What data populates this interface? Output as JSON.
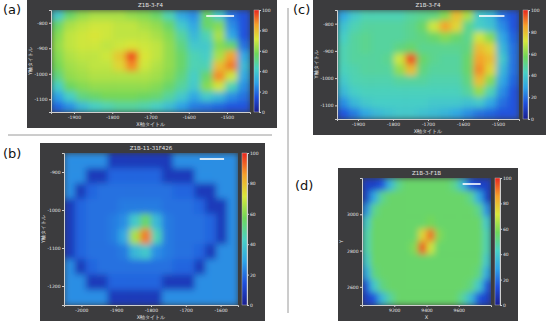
{
  "chart_data": [
    {
      "type": "heatmap",
      "annotation": "(a)",
      "title": "Z1B-3-F4",
      "x_label": "X軸タイトル",
      "y_label": "Y軸タイトル",
      "xlim": [
        -1960,
        -1440
      ],
      "xticks": [
        -1900,
        -1800,
        -1700,
        -1600,
        -1500
      ],
      "ylim": [
        -1150,
        -750
      ],
      "yticks": [
        -1100,
        -1000,
        -900,
        -800
      ],
      "color_range": [
        0,
        100
      ],
      "color_ticks": [
        0,
        20,
        40,
        60,
        80,
        100
      ],
      "cells": [
        [
          40,
          55,
          62,
          65,
          65,
          65,
          62,
          60,
          55,
          45,
          30,
          25,
          55,
          40,
          20,
          15
        ],
        [
          55,
          65,
          68,
          70,
          70,
          68,
          68,
          65,
          62,
          55,
          40,
          30,
          55,
          60,
          25,
          15
        ],
        [
          60,
          68,
          70,
          72,
          70,
          68,
          68,
          68,
          65,
          60,
          48,
          35,
          45,
          65,
          30,
          15
        ],
        [
          62,
          68,
          70,
          70,
          68,
          70,
          72,
          70,
          68,
          62,
          52,
          40,
          40,
          60,
          55,
          20
        ],
        [
          60,
          66,
          68,
          68,
          70,
          78,
          95,
          72,
          68,
          62,
          55,
          45,
          42,
          65,
          85,
          30
        ],
        [
          58,
          64,
          66,
          68,
          68,
          75,
          88,
          70,
          66,
          62,
          55,
          45,
          45,
          80,
          90,
          35
        ],
        [
          52,
          62,
          64,
          66,
          66,
          66,
          66,
          66,
          64,
          60,
          52,
          42,
          55,
          88,
          70,
          30
        ],
        [
          42,
          56,
          60,
          62,
          62,
          62,
          62,
          62,
          60,
          55,
          48,
          40,
          60,
          70,
          45,
          25
        ],
        [
          28,
          42,
          52,
          55,
          58,
          58,
          58,
          56,
          54,
          48,
          40,
          30,
          40,
          35,
          25,
          20
        ],
        [
          18,
          25,
          35,
          42,
          45,
          48,
          48,
          46,
          42,
          36,
          28,
          22,
          20,
          18,
          15,
          15
        ]
      ]
    },
    {
      "type": "heatmap",
      "annotation": "(b)",
      "title": "Z1B-11-31F426",
      "x_label": "X軸タイトル",
      "y_label": "Y軸タイトル",
      "xlim": [
        -2050,
        -1550
      ],
      "xticks": [
        -2000,
        -1900,
        -1800,
        -1700,
        -1600
      ],
      "ylim": [
        -1250,
        -850
      ],
      "yticks": [
        -1200,
        -1100,
        -1000,
        -900
      ],
      "color_range": [
        0,
        100
      ],
      "color_ticks": [
        0,
        20,
        40,
        60,
        80,
        100
      ],
      "cells": [
        [
          25,
          25,
          25,
          25,
          8,
          8,
          8,
          8,
          8,
          8,
          25,
          25,
          25,
          25,
          25,
          25
        ],
        [
          25,
          25,
          8,
          8,
          18,
          18,
          18,
          18,
          18,
          8,
          8,
          8,
          25,
          25,
          25,
          25
        ],
        [
          25,
          8,
          18,
          20,
          20,
          20,
          20,
          20,
          20,
          20,
          18,
          18,
          8,
          8,
          25,
          25
        ],
        [
          8,
          18,
          20,
          20,
          20,
          22,
          22,
          22,
          22,
          20,
          20,
          20,
          18,
          8,
          8,
          25
        ],
        [
          8,
          18,
          20,
          20,
          22,
          25,
          40,
          55,
          35,
          22,
          20,
          20,
          20,
          18,
          8,
          25
        ],
        [
          8,
          18,
          20,
          20,
          22,
          30,
          65,
          90,
          45,
          22,
          20,
          20,
          20,
          18,
          8,
          25
        ],
        [
          8,
          18,
          20,
          20,
          20,
          22,
          35,
          40,
          25,
          22,
          20,
          20,
          18,
          8,
          25,
          25
        ],
        [
          25,
          8,
          18,
          20,
          20,
          20,
          20,
          20,
          20,
          20,
          18,
          18,
          8,
          25,
          25,
          25
        ],
        [
          25,
          25,
          8,
          8,
          18,
          18,
          18,
          18,
          18,
          8,
          8,
          8,
          25,
          25,
          25,
          25
        ],
        [
          25,
          25,
          25,
          25,
          8,
          8,
          8,
          8,
          8,
          25,
          25,
          25,
          25,
          25,
          25,
          25
        ]
      ]
    },
    {
      "type": "heatmap",
      "annotation": "(c)",
      "title": "Z1B-3-F4",
      "x_label": "X軸タイトル",
      "y_label": "Y軸タイトル",
      "xlim": [
        -1960,
        -1440
      ],
      "xticks": [
        -1900,
        -1800,
        -1700,
        -1600,
        -1500
      ],
      "ylim": [
        -1150,
        -750
      ],
      "yticks": [
        -1100,
        -1000,
        -900,
        -800
      ],
      "color_range": [
        0,
        100
      ],
      "color_ticks": [
        0,
        20,
        40,
        60,
        80,
        100
      ],
      "cells": [
        [
          30,
          40,
          45,
          45,
          45,
          45,
          48,
          50,
          52,
          60,
          80,
          65,
          40,
          35,
          20,
          15
        ],
        [
          38,
          45,
          48,
          48,
          48,
          48,
          50,
          55,
          70,
          85,
          75,
          50,
          42,
          38,
          25,
          15
        ],
        [
          42,
          48,
          50,
          48,
          48,
          48,
          50,
          52,
          55,
          60,
          55,
          50,
          70,
          60,
          30,
          18
        ],
        [
          45,
          48,
          50,
          48,
          48,
          52,
          55,
          50,
          50,
          50,
          50,
          52,
          80,
          75,
          35,
          20
        ],
        [
          45,
          48,
          48,
          48,
          50,
          70,
          95,
          55,
          50,
          48,
          48,
          55,
          85,
          80,
          40,
          20
        ],
        [
          44,
          46,
          48,
          48,
          48,
          62,
          80,
          52,
          48,
          48,
          48,
          55,
          88,
          75,
          35,
          20
        ],
        [
          40,
          45,
          46,
          46,
          46,
          48,
          48,
          48,
          46,
          46,
          46,
          52,
          80,
          60,
          30,
          18
        ],
        [
          35,
          42,
          44,
          44,
          44,
          44,
          44,
          44,
          44,
          44,
          44,
          48,
          62,
          45,
          25,
          15
        ],
        [
          25,
          35,
          40,
          42,
          42,
          42,
          42,
          42,
          40,
          40,
          40,
          38,
          40,
          30,
          20,
          15
        ],
        [
          15,
          22,
          30,
          35,
          38,
          40,
          40,
          38,
          36,
          34,
          30,
          25,
          20,
          18,
          15,
          15
        ]
      ]
    },
    {
      "type": "heatmap",
      "annotation": "(d)",
      "title": "Z1B-3-F1B",
      "x_label": "X",
      "y_label": "Y",
      "xlim": [
        9000,
        9800
      ],
      "xticks": [
        9200,
        9400,
        9600
      ],
      "ylim": [
        2500,
        3200
      ],
      "yticks": [
        2600,
        2800,
        3000
      ],
      "color_range": [
        0,
        100
      ],
      "color_ticks": [
        0,
        20,
        40,
        60,
        80,
        100
      ],
      "cells": [
        [
          10,
          10,
          15,
          35,
          50,
          55,
          55,
          55,
          55,
          55,
          55,
          50,
          35,
          15,
          10,
          10
        ],
        [
          10,
          30,
          50,
          55,
          55,
          55,
          55,
          55,
          55,
          55,
          55,
          55,
          55,
          50,
          30,
          10
        ],
        [
          25,
          50,
          55,
          55,
          55,
          55,
          55,
          55,
          55,
          55,
          55,
          55,
          55,
          55,
          50,
          25
        ],
        [
          40,
          55,
          55,
          55,
          55,
          55,
          55,
          55,
          58,
          55,
          55,
          55,
          55,
          55,
          55,
          40
        ],
        [
          45,
          55,
          55,
          55,
          55,
          55,
          55,
          75,
          92,
          60,
          55,
          55,
          55,
          55,
          55,
          45
        ],
        [
          45,
          55,
          55,
          55,
          55,
          55,
          60,
          95,
          70,
          55,
          55,
          55,
          55,
          55,
          55,
          45
        ],
        [
          40,
          55,
          55,
          55,
          55,
          55,
          55,
          55,
          55,
          55,
          55,
          55,
          55,
          55,
          55,
          40
        ],
        [
          30,
          52,
          55,
          55,
          55,
          55,
          55,
          55,
          55,
          55,
          55,
          55,
          55,
          55,
          52,
          30
        ],
        [
          15,
          40,
          52,
          55,
          55,
          55,
          55,
          55,
          55,
          55,
          55,
          55,
          55,
          52,
          40,
          15
        ],
        [
          10,
          15,
          35,
          48,
          55,
          55,
          55,
          55,
          55,
          55,
          55,
          55,
          48,
          35,
          15,
          10
        ]
      ]
    }
  ]
}
